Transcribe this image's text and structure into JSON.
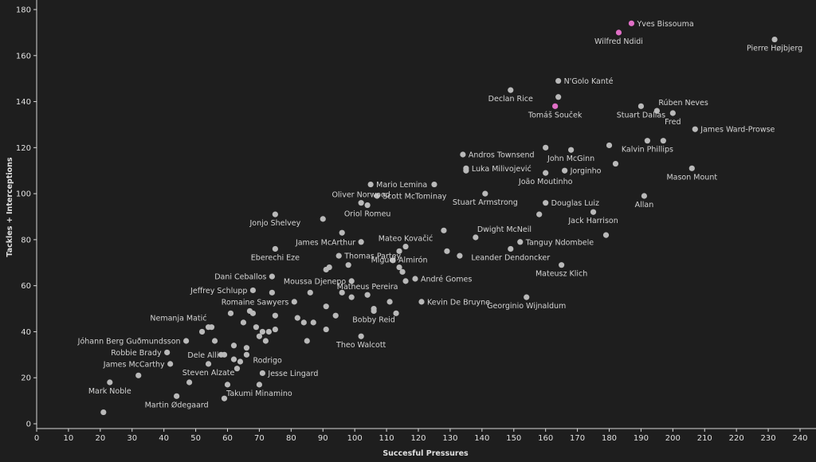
{
  "chart_data": {
    "type": "scatter",
    "title": "",
    "xlabel": "Succesful Pressures",
    "ylabel": "Tackles + Interceptions",
    "xlim": [
      0,
      240
    ],
    "ylim": [
      0,
      180
    ],
    "xticks": [
      0,
      10,
      20,
      30,
      40,
      50,
      60,
      70,
      80,
      90,
      100,
      110,
      120,
      130,
      140,
      150,
      160,
      170,
      180,
      190,
      200,
      210,
      220,
      230,
      240
    ],
    "yticks": [
      0,
      20,
      40,
      60,
      80,
      100,
      120,
      140,
      160,
      180
    ],
    "colors": {
      "default": "#b9b9b9",
      "highlight": "#e06fc6",
      "background": "#1e1e1e"
    },
    "labeled_points": [
      {
        "name": "Yves Bissouma",
        "x": 187,
        "y": 174,
        "highlight": true,
        "anchor": "r"
      },
      {
        "name": "Wilfred Ndidi",
        "x": 183,
        "y": 170,
        "highlight": true,
        "anchor": "b"
      },
      {
        "name": "Pierre Højbjerg",
        "x": 232,
        "y": 167,
        "anchor": "b"
      },
      {
        "name": "N'Golo Kanté",
        "x": 164,
        "y": 149,
        "anchor": "r"
      },
      {
        "name": "Declan Rice",
        "x": 149,
        "y": 145,
        "anchor": "b"
      },
      {
        "name": "Tomáš Souček",
        "x": 163,
        "y": 138,
        "highlight": true,
        "anchor": "b"
      },
      {
        "name": "Rúben Neves",
        "x": 195,
        "y": 136,
        "anchor": "rt"
      },
      {
        "name": "Stuart Dallas",
        "x": 190,
        "y": 138,
        "anchor": "b"
      },
      {
        "name": "Fred",
        "x": 200,
        "y": 135,
        "anchor": "b"
      },
      {
        "name": "James Ward-Prowse",
        "x": 207,
        "y": 128,
        "anchor": "r"
      },
      {
        "name": "Kalvin Phillips",
        "x": 192,
        "y": 123,
        "anchor": "b"
      },
      {
        "name": "Andros Townsend",
        "x": 134,
        "y": 117,
        "anchor": "r"
      },
      {
        "name": "John McGinn",
        "x": 168,
        "y": 119,
        "anchor": "b"
      },
      {
        "name": "Luka Milivojević",
        "x": 135,
        "y": 111,
        "anchor": "r"
      },
      {
        "name": "Jorginho",
        "x": 166,
        "y": 110,
        "anchor": "r"
      },
      {
        "name": "João Moutinho",
        "x": 160,
        "y": 109,
        "anchor": "b"
      },
      {
        "name": "Mason Mount",
        "x": 206,
        "y": 111,
        "anchor": "b"
      },
      {
        "name": "Mario Lemina",
        "x": 105,
        "y": 104,
        "anchor": "r"
      },
      {
        "name": "Oliver Norwood",
        "x": 102,
        "y": 96,
        "anchor": "t"
      },
      {
        "name": "Scott McTominay",
        "x": 107,
        "y": 99,
        "anchor": "r"
      },
      {
        "name": "Stuart Armstrong",
        "x": 141,
        "y": 100,
        "anchor": "b"
      },
      {
        "name": "Douglas Luiz",
        "x": 160,
        "y": 96,
        "anchor": "r"
      },
      {
        "name": "Allan",
        "x": 191,
        "y": 99,
        "anchor": "b"
      },
      {
        "name": "Oriol Romeu",
        "x": 104,
        "y": 95,
        "anchor": "b"
      },
      {
        "name": "Jack Harrison",
        "x": 175,
        "y": 92,
        "anchor": "b"
      },
      {
        "name": "Jonjo Shelvey",
        "x": 75,
        "y": 91,
        "anchor": "b"
      },
      {
        "name": "Dwight McNeil",
        "x": 138,
        "y": 81,
        "anchor": "rt"
      },
      {
        "name": "Mateo Kovačić",
        "x": 116,
        "y": 77,
        "anchor": "t"
      },
      {
        "name": "James McArthur",
        "x": 102,
        "y": 79,
        "anchor": "l"
      },
      {
        "name": "Tanguy Ndombele",
        "x": 152,
        "y": 79,
        "anchor": "r"
      },
      {
        "name": "Eberechi Eze",
        "x": 75,
        "y": 76,
        "anchor": "b"
      },
      {
        "name": "Thomas Partey",
        "x": 95,
        "y": 73,
        "anchor": "r"
      },
      {
        "name": "Miguel Almirón",
        "x": 114,
        "y": 75,
        "anchor": "b"
      },
      {
        "name": "Leander Dendoncker",
        "x": 149,
        "y": 76,
        "anchor": "b"
      },
      {
        "name": "Mateusz Klich",
        "x": 165,
        "y": 69,
        "anchor": "b"
      },
      {
        "name": "Dani Ceballos",
        "x": 74,
        "y": 64,
        "anchor": "l"
      },
      {
        "name": "André Gomes",
        "x": 119,
        "y": 63,
        "anchor": "r"
      },
      {
        "name": "Moussa Djenepo",
        "x": 99,
        "y": 62,
        "anchor": "l"
      },
      {
        "name": "Jeffrey Schlupp",
        "x": 68,
        "y": 58,
        "anchor": "l"
      },
      {
        "name": "Matheus Pereira",
        "x": 104,
        "y": 56,
        "anchor": "t"
      },
      {
        "name": "Romaine Sawyers",
        "x": 81,
        "y": 53,
        "anchor": "l"
      },
      {
        "name": "Kevin De Bruyne",
        "x": 121,
        "y": 53,
        "anchor": "r"
      },
      {
        "name": "Georginio Wijnaldum",
        "x": 154,
        "y": 55,
        "anchor": "b"
      },
      {
        "name": "Bobby Reid",
        "x": 106,
        "y": 49,
        "anchor": "b"
      },
      {
        "name": "Nemanja Matić",
        "x": 55,
        "y": 42,
        "anchor": "lt"
      },
      {
        "name": "Theo Walcott",
        "x": 102,
        "y": 38,
        "anchor": "b"
      },
      {
        "name": "Jóhann Berg Guðmundsson",
        "x": 47,
        "y": 36,
        "anchor": "l"
      },
      {
        "name": "Robbie Brady",
        "x": 41,
        "y": 31,
        "anchor": "l"
      },
      {
        "name": "Dele Alli",
        "x": 59,
        "y": 30,
        "anchor": "l"
      },
      {
        "name": "Rodrigo",
        "x": 66,
        "y": 30,
        "anchor": "rb"
      },
      {
        "name": "James McCarthy",
        "x": 42,
        "y": 26,
        "anchor": "l"
      },
      {
        "name": "Steven Alzate",
        "x": 54,
        "y": 26,
        "anchor": "b"
      },
      {
        "name": "Jesse Lingard",
        "x": 71,
        "y": 22,
        "anchor": "r"
      },
      {
        "name": "Mark Noble",
        "x": 23,
        "y": 18,
        "anchor": "b"
      },
      {
        "name": "Takumi Minamino",
        "x": 70,
        "y": 17,
        "anchor": "b"
      },
      {
        "name": "Martin Ødegaard",
        "x": 44,
        "y": 12,
        "anchor": "b"
      }
    ],
    "other_points": [
      [
        21,
        5
      ],
      [
        32,
        21
      ],
      [
        48,
        18
      ],
      [
        52,
        40
      ],
      [
        56,
        36
      ],
      [
        58,
        30
      ],
      [
        60,
        17
      ],
      [
        59,
        11
      ],
      [
        54,
        42
      ],
      [
        61,
        48
      ],
      [
        62,
        34
      ],
      [
        63,
        24
      ],
      [
        62,
        28
      ],
      [
        64,
        27
      ],
      [
        66,
        33
      ],
      [
        65,
        44
      ],
      [
        67,
        49
      ],
      [
        68,
        48
      ],
      [
        69,
        42
      ],
      [
        70,
        38
      ],
      [
        71,
        40
      ],
      [
        72,
        36
      ],
      [
        73,
        40
      ],
      [
        75,
        47
      ],
      [
        75,
        41
      ],
      [
        74,
        57
      ],
      [
        82,
        46
      ],
      [
        84,
        44
      ],
      [
        85,
        36
      ],
      [
        87,
        44
      ],
      [
        86,
        57
      ],
      [
        91,
        41
      ],
      [
        91,
        51
      ],
      [
        92,
        68
      ],
      [
        91,
        67
      ],
      [
        94,
        47
      ],
      [
        96,
        57
      ],
      [
        98,
        69
      ],
      [
        99,
        55
      ],
      [
        96,
        83
      ],
      [
        90,
        89
      ],
      [
        106,
        50
      ],
      [
        111,
        53
      ],
      [
        113,
        48
      ],
      [
        115,
        66
      ],
      [
        114,
        68
      ],
      [
        112,
        71
      ],
      [
        116,
        62
      ],
      [
        125,
        104
      ],
      [
        128,
        84
      ],
      [
        129,
        75
      ],
      [
        133,
        73
      ],
      [
        135,
        110
      ],
      [
        158,
        91
      ],
      [
        160,
        120
      ],
      [
        164,
        142
      ],
      [
        179,
        82
      ],
      [
        180,
        121
      ],
      [
        182,
        113
      ],
      [
        197,
        123
      ]
    ]
  }
}
